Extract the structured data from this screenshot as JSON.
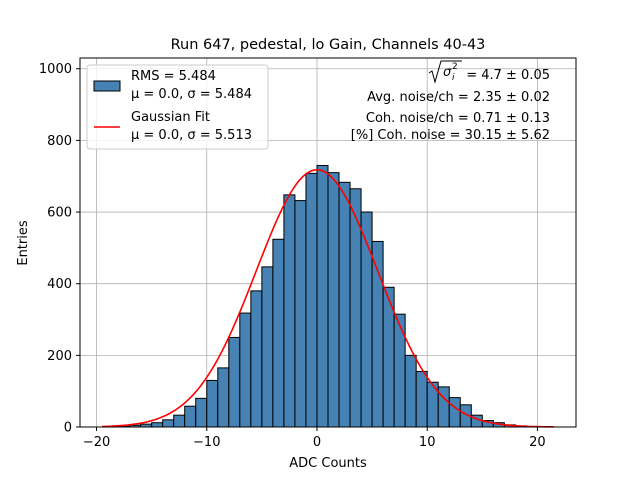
{
  "chart_data": {
    "type": "bar",
    "title": "Run 647, pedestal, lo Gain, Channels 40-43",
    "xlabel": "ADC Counts",
    "ylabel": "Entries",
    "xlim": [
      -21.5,
      23.5
    ],
    "ylim": [
      0,
      1030
    ],
    "x_ticks": [
      -20,
      -10,
      0,
      10,
      20
    ],
    "x_tick_labels": [
      "−20",
      "−10",
      "0",
      "10",
      "20"
    ],
    "y_ticks": [
      0,
      200,
      400,
      600,
      800,
      1000
    ],
    "y_tick_labels": [
      "0",
      "200",
      "400",
      "600",
      "800",
      "1000"
    ],
    "grid": true,
    "histogram": {
      "name": "RMS = 5.484",
      "color": "#4682b4",
      "edge_color": "#000000",
      "bin_width": 1,
      "bins": [
        {
          "x0": -18,
          "count": 2
        },
        {
          "x0": -17,
          "count": 5
        },
        {
          "x0": -16,
          "count": 8
        },
        {
          "x0": -15,
          "count": 12
        },
        {
          "x0": -14,
          "count": 20
        },
        {
          "x0": -13,
          "count": 33
        },
        {
          "x0": -12,
          "count": 58
        },
        {
          "x0": -11,
          "count": 80
        },
        {
          "x0": -10,
          "count": 130
        },
        {
          "x0": -9,
          "count": 165
        },
        {
          "x0": -8,
          "count": 250
        },
        {
          "x0": -7,
          "count": 318
        },
        {
          "x0": -6,
          "count": 380
        },
        {
          "x0": -5,
          "count": 447
        },
        {
          "x0": -4,
          "count": 524
        },
        {
          "x0": -3,
          "count": 648
        },
        {
          "x0": -2,
          "count": 632
        },
        {
          "x0": -1,
          "count": 708
        },
        {
          "x0": 0,
          "count": 730
        },
        {
          "x0": 1,
          "count": 710
        },
        {
          "x0": 2,
          "count": 683
        },
        {
          "x0": 3,
          "count": 665
        },
        {
          "x0": 4,
          "count": 600
        },
        {
          "x0": 5,
          "count": 518
        },
        {
          "x0": 6,
          "count": 390
        },
        {
          "x0": 7,
          "count": 315
        },
        {
          "x0": 8,
          "count": 200
        },
        {
          "x0": 9,
          "count": 155
        },
        {
          "x0": 10,
          "count": 125
        },
        {
          "x0": 11,
          "count": 112
        },
        {
          "x0": 12,
          "count": 82
        },
        {
          "x0": 13,
          "count": 62
        },
        {
          "x0": 14,
          "count": 33
        },
        {
          "x0": 15,
          "count": 18
        },
        {
          "x0": 16,
          "count": 12
        },
        {
          "x0": 17,
          "count": 6
        },
        {
          "x0": 18,
          "count": 3
        },
        {
          "x0": 19,
          "count": 1
        },
        {
          "x0": 20,
          "count": 1
        }
      ]
    },
    "fit": {
      "name": "Gaussian Fit",
      "color": "#ff0000",
      "mu": 0.0,
      "sigma": 5.513,
      "amplitude": 718,
      "x_range": [
        -19.5,
        21.5
      ]
    },
    "legend": {
      "position": "top-left",
      "entries": [
        {
          "line1": "RMS = 5.484",
          "line2": "μ = 0.0, σ = 5.484",
          "swatch": "bar"
        },
        {
          "line1": "Gaussian Fit",
          "line2": "μ = 0.0, σ = 5.513",
          "swatch": "line"
        }
      ]
    },
    "annotations": {
      "position": "top-right",
      "sigma_sq_value": "= 4.7 ± 0.05",
      "avg_noise": "Avg. noise/ch = 2.35 ± 0.02",
      "coh_noise": "Coh. noise/ch = 0.71 ± 0.13",
      "pct_coh_noise": "[%] Coh. noise = 30.15 ± 5.62"
    }
  }
}
